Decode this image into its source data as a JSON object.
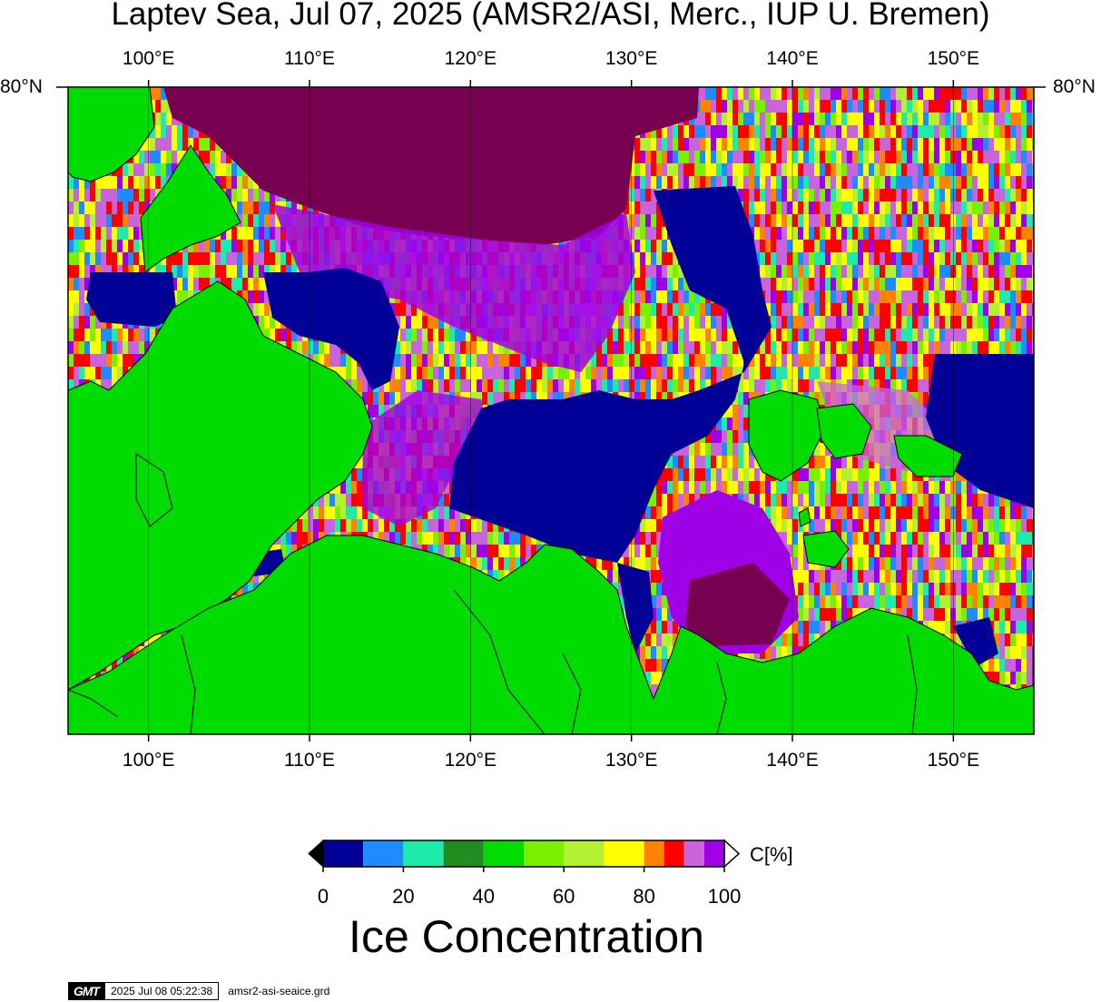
{
  "title": "Laptev Sea, Jul 07, 2025 (AMSR2/ASI, Merc., IUP U. Bremen)",
  "map": {
    "lon_ticks": [
      "100°E",
      "110°E",
      "120°E",
      "130°E",
      "140°E",
      "150°E"
    ],
    "lon_tick_values": [
      100,
      110,
      120,
      130,
      140,
      150
    ],
    "lon_range": [
      95,
      155
    ],
    "lat_label": "80°N",
    "colors": {
      "land": "#00dc00",
      "open_water": "#000096",
      "high_ice": "#780050",
      "purple": "#a000e6",
      "magenta": "#c864dc"
    }
  },
  "colorbar": {
    "unit": "C[%]",
    "tick_labels": [
      "0",
      "20",
      "40",
      "60",
      "80",
      "100"
    ],
    "tick_values": [
      0,
      20,
      40,
      60,
      80,
      100
    ],
    "segments": [
      {
        "from": 0,
        "to": 10,
        "color": "#000096"
      },
      {
        "from": 10,
        "to": 20,
        "color": "#1e8cff"
      },
      {
        "from": 20,
        "to": 30,
        "color": "#1eebaa"
      },
      {
        "from": 30,
        "to": 40,
        "color": "#228b22"
      },
      {
        "from": 40,
        "to": 50,
        "color": "#00dc00"
      },
      {
        "from": 50,
        "to": 60,
        "color": "#78f000"
      },
      {
        "from": 60,
        "to": 70,
        "color": "#b4f032"
      },
      {
        "from": 70,
        "to": 80,
        "color": "#ffff00"
      },
      {
        "from": 80,
        "to": 85,
        "color": "#ff8200"
      },
      {
        "from": 85,
        "to": 90,
        "color": "#ff0000"
      },
      {
        "from": 90,
        "to": 95,
        "color": "#c864dc"
      },
      {
        "from": 95,
        "to": 100,
        "color": "#a000e6"
      }
    ],
    "title": "Ice Concentration"
  },
  "footer": {
    "logo": "GMT",
    "timestamp": "2025 Jul 08 05:22:38",
    "filename": "amsr2-asi-seaice.grd"
  }
}
